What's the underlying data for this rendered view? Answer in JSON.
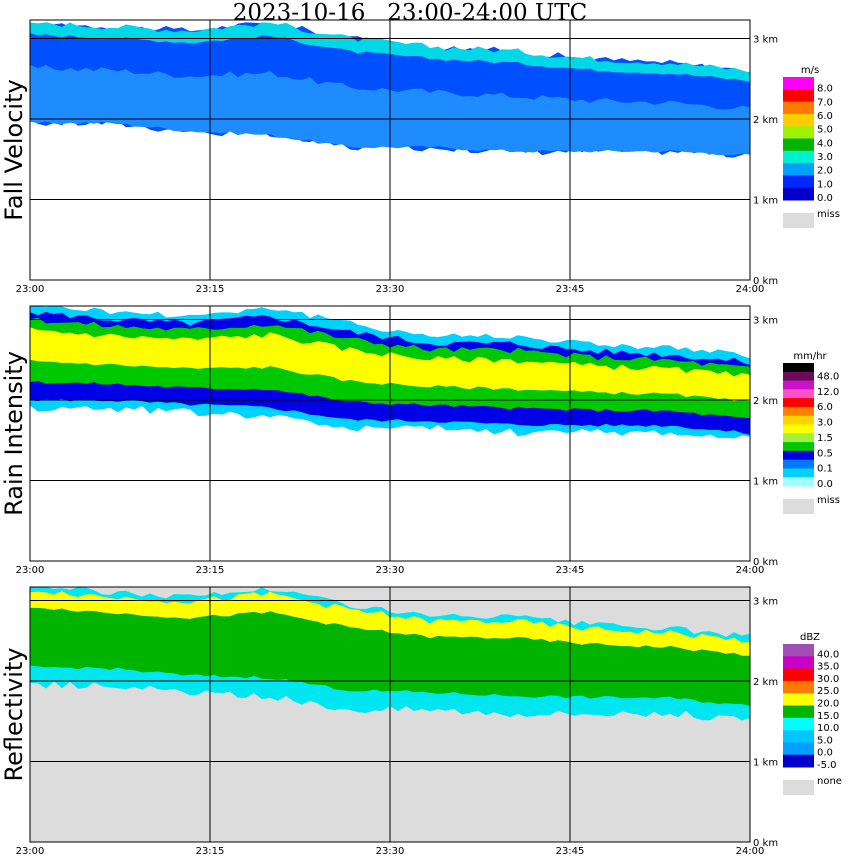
{
  "title": "2023-10-16   23:00-24:00 UTC",
  "colors": {
    "miss": "#dcdcdc",
    "frame": "#000000"
  },
  "chart_data": [
    {
      "type": "heatmap",
      "name": "Fall Velocity",
      "title": "Fall Velocity",
      "x": {
        "ticks": [
          "23:00",
          "23:15",
          "23:30",
          "23:45",
          "24:00"
        ],
        "range": [
          "23:00",
          "24:00"
        ]
      },
      "y": {
        "ticks": [
          "0 km",
          "1 km",
          "2 km",
          "3 km"
        ],
        "range_km": [
          0,
          3.2
        ]
      },
      "grid": true,
      "missing_shaded": false,
      "colorbar": {
        "unit": "m/s",
        "levels": [
          "8.0",
          "7.0",
          "6.0",
          "5.0",
          "4.0",
          "3.0",
          "2.0",
          "1.0",
          "0.0"
        ],
        "colors": [
          "#ff00ff",
          "#ff0000",
          "#ff7800",
          "#ffcc00",
          "#a0f000",
          "#00b400",
          "#00f0d0",
          "#00a0ff",
          "#0028ff",
          "#0000c8"
        ],
        "miss_label": "miss"
      },
      "layer": {
        "top_km": [
          3.2,
          3.15,
          3.1,
          3.2,
          3.0,
          2.9,
          2.85,
          2.75,
          2.7,
          2.6
        ],
        "base_km": [
          1.95,
          1.95,
          1.85,
          1.8,
          1.65,
          1.65,
          1.6,
          1.6,
          1.6,
          1.55
        ],
        "bands": [
          {
            "from": 0.0,
            "to": 1.0,
            "color": "#0050ff"
          },
          {
            "from": 0.45,
            "to": 1.0,
            "color": "#1e8cff"
          },
          {
            "from": 0.0,
            "to": 0.12,
            "color": "#00d8e8"
          }
        ]
      }
    },
    {
      "type": "heatmap",
      "name": "Rain Intensity",
      "title": "Rain Intensity",
      "x": {
        "ticks": [
          "23:00",
          "23:15",
          "23:30",
          "23:45",
          "24:00"
        ],
        "range": [
          "23:00",
          "24:00"
        ]
      },
      "y": {
        "ticks": [
          "0 km",
          "1 km",
          "2 km",
          "3 km"
        ],
        "range_km": [
          0,
          3.2
        ]
      },
      "grid": true,
      "missing_shaded": false,
      "colorbar": {
        "unit": "mm/hr",
        "levels": [
          "48.0",
          "12.0",
          "6.0",
          "3.0",
          "1.5",
          "0.5",
          "0.1",
          "0.0"
        ],
        "colors": [
          "#000000",
          "#6e0a5a",
          "#c814c8",
          "#ff50c8",
          "#ff0000",
          "#ff8000",
          "#ffd200",
          "#ffff00",
          "#a0f03c",
          "#00c800",
          "#0000e6",
          "#0078ff",
          "#00d2ff",
          "#a0ffff"
        ],
        "miss_label": "miss"
      },
      "layer": {
        "top_km": [
          3.2,
          3.1,
          3.05,
          3.15,
          2.95,
          2.8,
          2.8,
          2.7,
          2.65,
          2.55
        ],
        "base_km": [
          1.9,
          1.9,
          1.85,
          1.8,
          1.65,
          1.65,
          1.6,
          1.6,
          1.6,
          1.5
        ],
        "bands": [
          {
            "from": 0.0,
            "to": 1.0,
            "color": "#00d2ff"
          },
          {
            "from": 0.08,
            "to": 0.92,
            "color": "#0000e6"
          },
          {
            "from": 0.15,
            "to": 0.75,
            "color": "#00c800"
          },
          {
            "from": 0.25,
            "to": 0.55,
            "color": "#ffff00"
          }
        ]
      }
    },
    {
      "type": "heatmap",
      "name": "Reflectivity",
      "title": "Reflectivity",
      "x": {
        "ticks": [
          "23:00",
          "23:15",
          "23:30",
          "23:45",
          "24:00"
        ],
        "range": [
          "23:00",
          "24:00"
        ]
      },
      "y": {
        "ticks": [
          "0 km",
          "1 km",
          "2 km",
          "3 km"
        ],
        "range_km": [
          0,
          3.2
        ]
      },
      "grid": true,
      "missing_shaded": true,
      "colorbar": {
        "unit": "dBZ",
        "levels": [
          "40.0",
          "35.0",
          "30.0",
          "25.0",
          "20.0",
          "15.0",
          "10.0",
          "5.0",
          "0.0",
          "-5.0"
        ],
        "colors": [
          "#a050b4",
          "#c800c8",
          "#ff0000",
          "#ff7800",
          "#ffff00",
          "#00b400",
          "#00ffff",
          "#00c8ff",
          "#00a0ff",
          "#0000c8"
        ],
        "miss_label": "none"
      },
      "layer": {
        "top_km": [
          3.2,
          3.1,
          3.05,
          3.15,
          2.95,
          2.8,
          2.8,
          2.7,
          2.65,
          2.55
        ],
        "base_km": [
          1.95,
          1.95,
          1.85,
          1.8,
          1.65,
          1.65,
          1.6,
          1.6,
          1.6,
          1.5
        ],
        "bands": [
          {
            "from": 0.0,
            "to": 1.0,
            "color": "#00e6f0"
          },
          {
            "from": 0.12,
            "to": 0.82,
            "color": "#00b400"
          },
          {
            "from": 0.05,
            "to": 0.22,
            "color": "#ffff00"
          }
        ]
      }
    }
  ]
}
